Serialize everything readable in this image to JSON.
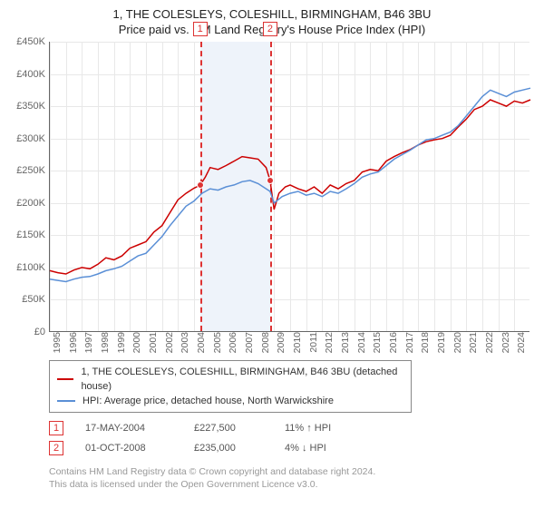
{
  "title_line1": "1, THE COLESLEYS, COLESHILL, BIRMINGHAM, B46 3BU",
  "title_line2": "Price paid vs. HM Land Registry's House Price Index (HPI)",
  "chart": {
    "type": "line",
    "xlim": [
      1995,
      2025
    ],
    "ylim": [
      0,
      450000
    ],
    "ytick_step": 50000,
    "ytick_labels": [
      "£0",
      "£50K",
      "£100K",
      "£150K",
      "£200K",
      "£250K",
      "£300K",
      "£350K",
      "£400K",
      "£450K"
    ],
    "xticks": [
      1995,
      1996,
      1997,
      1998,
      1999,
      2000,
      2001,
      2002,
      2003,
      2004,
      2005,
      2006,
      2007,
      2008,
      2009,
      2010,
      2011,
      2012,
      2013,
      2014,
      2015,
      2016,
      2017,
      2018,
      2019,
      2020,
      2021,
      2022,
      2023,
      2024
    ],
    "grid_color": "#e8e8e8",
    "background_color": "#ffffff",
    "band_color": "#eef3fa",
    "band_x": [
      2004.38,
      2008.75
    ],
    "series": [
      {
        "name": "1, THE COLESLEYS, COLESHILL, BIRMINGHAM, B46 3BU (detached house)",
        "color": "#cc0000",
        "line_width": 1.5,
        "data": [
          [
            1995,
            95000
          ],
          [
            1995.5,
            92000
          ],
          [
            1996,
            90000
          ],
          [
            1996.5,
            96000
          ],
          [
            1997,
            100000
          ],
          [
            1997.5,
            98000
          ],
          [
            1998,
            105000
          ],
          [
            1998.5,
            115000
          ],
          [
            1999,
            112000
          ],
          [
            1999.5,
            118000
          ],
          [
            2000,
            130000
          ],
          [
            2000.5,
            135000
          ],
          [
            2001,
            140000
          ],
          [
            2001.5,
            155000
          ],
          [
            2002,
            165000
          ],
          [
            2002.5,
            185000
          ],
          [
            2003,
            205000
          ],
          [
            2003.5,
            215000
          ],
          [
            2004,
            223000
          ],
          [
            2004.38,
            227500
          ],
          [
            2004.7,
            240000
          ],
          [
            2005,
            255000
          ],
          [
            2005.5,
            252000
          ],
          [
            2006,
            258000
          ],
          [
            2006.5,
            265000
          ],
          [
            2007,
            272000
          ],
          [
            2007.5,
            270000
          ],
          [
            2008,
            268000
          ],
          [
            2008.5,
            255000
          ],
          [
            2008.75,
            235000
          ],
          [
            2009,
            190000
          ],
          [
            2009.3,
            215000
          ],
          [
            2009.7,
            225000
          ],
          [
            2010,
            228000
          ],
          [
            2010.5,
            222000
          ],
          [
            2011,
            218000
          ],
          [
            2011.5,
            225000
          ],
          [
            2012,
            215000
          ],
          [
            2012.5,
            228000
          ],
          [
            2013,
            222000
          ],
          [
            2013.5,
            230000
          ],
          [
            2014,
            235000
          ],
          [
            2014.5,
            248000
          ],
          [
            2015,
            252000
          ],
          [
            2015.5,
            250000
          ],
          [
            2016,
            265000
          ],
          [
            2016.5,
            272000
          ],
          [
            2017,
            278000
          ],
          [
            2017.5,
            283000
          ],
          [
            2018,
            290000
          ],
          [
            2018.5,
            295000
          ],
          [
            2019,
            298000
          ],
          [
            2019.5,
            300000
          ],
          [
            2020,
            305000
          ],
          [
            2020.5,
            318000
          ],
          [
            2021,
            330000
          ],
          [
            2021.5,
            345000
          ],
          [
            2022,
            350000
          ],
          [
            2022.5,
            360000
          ],
          [
            2023,
            355000
          ],
          [
            2023.5,
            350000
          ],
          [
            2024,
            358000
          ],
          [
            2024.5,
            355000
          ],
          [
            2025,
            360000
          ]
        ]
      },
      {
        "name": "HPI: Average price, detached house, North Warwickshire",
        "color": "#5a8fd6",
        "line_width": 1.5,
        "data": [
          [
            1995,
            82000
          ],
          [
            1995.5,
            80000
          ],
          [
            1996,
            78000
          ],
          [
            1996.5,
            82000
          ],
          [
            1997,
            85000
          ],
          [
            1997.5,
            86000
          ],
          [
            1998,
            90000
          ],
          [
            1998.5,
            95000
          ],
          [
            1999,
            98000
          ],
          [
            1999.5,
            102000
          ],
          [
            2000,
            110000
          ],
          [
            2000.5,
            118000
          ],
          [
            2001,
            122000
          ],
          [
            2001.5,
            135000
          ],
          [
            2002,
            148000
          ],
          [
            2002.5,
            165000
          ],
          [
            2003,
            180000
          ],
          [
            2003.5,
            195000
          ],
          [
            2004,
            203000
          ],
          [
            2004.5,
            215000
          ],
          [
            2005,
            222000
          ],
          [
            2005.5,
            220000
          ],
          [
            2006,
            225000
          ],
          [
            2006.5,
            228000
          ],
          [
            2007,
            233000
          ],
          [
            2007.5,
            235000
          ],
          [
            2008,
            230000
          ],
          [
            2008.5,
            222000
          ],
          [
            2008.75,
            218000
          ],
          [
            2009,
            200000
          ],
          [
            2009.5,
            210000
          ],
          [
            2010,
            215000
          ],
          [
            2010.5,
            218000
          ],
          [
            2011,
            212000
          ],
          [
            2011.5,
            215000
          ],
          [
            2012,
            210000
          ],
          [
            2012.5,
            218000
          ],
          [
            2013,
            215000
          ],
          [
            2013.5,
            222000
          ],
          [
            2014,
            230000
          ],
          [
            2014.5,
            240000
          ],
          [
            2015,
            245000
          ],
          [
            2015.5,
            248000
          ],
          [
            2016,
            258000
          ],
          [
            2016.5,
            268000
          ],
          [
            2017,
            275000
          ],
          [
            2017.5,
            282000
          ],
          [
            2018,
            290000
          ],
          [
            2018.5,
            298000
          ],
          [
            2019,
            300000
          ],
          [
            2019.5,
            305000
          ],
          [
            2020,
            310000
          ],
          [
            2020.5,
            320000
          ],
          [
            2021,
            335000
          ],
          [
            2021.5,
            350000
          ],
          [
            2022,
            365000
          ],
          [
            2022.5,
            375000
          ],
          [
            2023,
            370000
          ],
          [
            2023.5,
            365000
          ],
          [
            2024,
            372000
          ],
          [
            2024.5,
            375000
          ],
          [
            2025,
            378000
          ]
        ]
      }
    ],
    "markers": [
      {
        "id": "1",
        "x": 2004.38,
        "y": 227500
      },
      {
        "id": "2",
        "x": 2008.75,
        "y": 235000
      }
    ]
  },
  "transactions": [
    {
      "id": "1",
      "date": "17-MAY-2004",
      "price": "£227,500",
      "diff": "11% ↑ HPI"
    },
    {
      "id": "2",
      "date": "01-OCT-2008",
      "price": "£235,000",
      "diff": "4% ↓ HPI"
    }
  ],
  "footnote_line1": "Contains HM Land Registry data © Crown copyright and database right 2024.",
  "footnote_line2": "This data is licensed under the Open Government Licence v3.0."
}
